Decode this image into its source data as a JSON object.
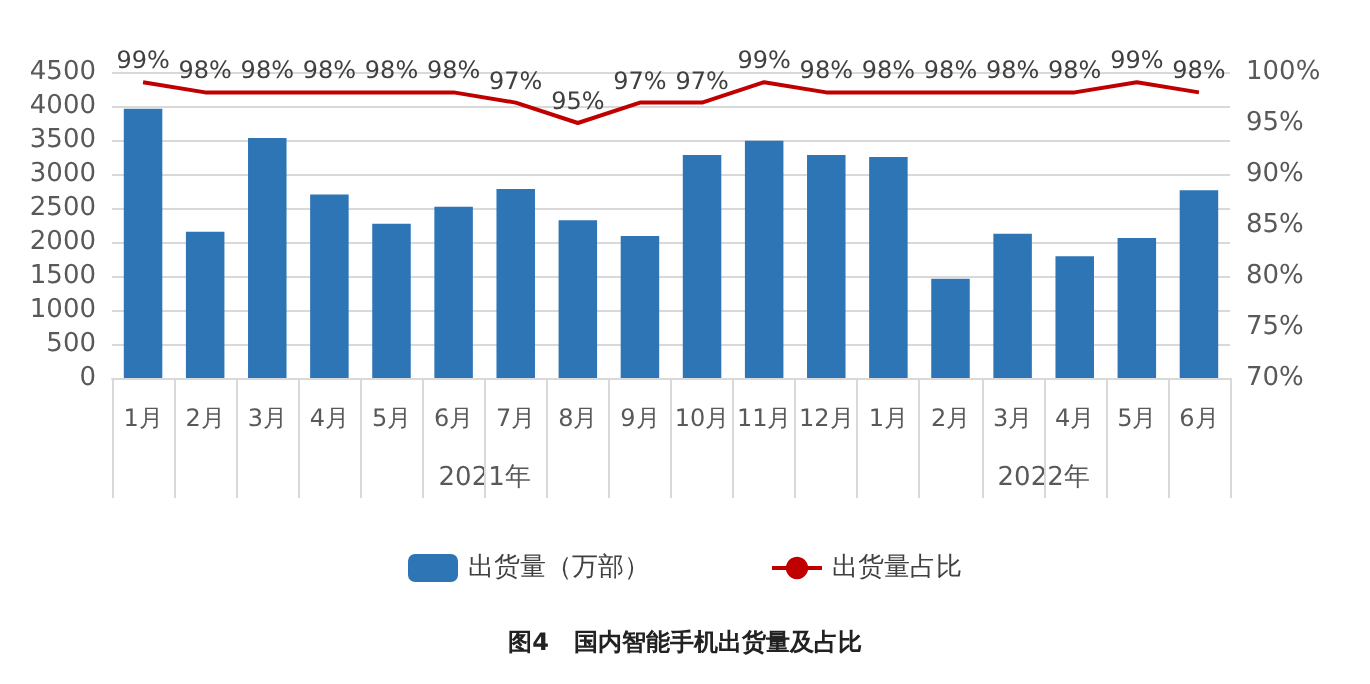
{
  "chart_data": {
    "type": "bar",
    "title": "图4   国内智能手机出货量及占比",
    "categories": [
      "1月",
      "2月",
      "3月",
      "4月",
      "5月",
      "6月",
      "7月",
      "8月",
      "9月",
      "10月",
      "11月",
      "12月",
      "1月",
      "2月",
      "3月",
      "4月",
      "5月",
      "6月"
    ],
    "series": [
      {
        "name": "出货量（万部）",
        "color": "#2e75b6",
        "values": [
          3960,
          2150,
          3530,
          2700,
          2270,
          2520,
          2780,
          2320,
          2090,
          3280,
          3490,
          3280,
          3250,
          1460,
          2120,
          1790,
          2060,
          2760
        ]
      },
      {
        "name": "出货量占比",
        "type": "line",
        "axis": "y2",
        "color": "#c00000",
        "values": [
          99,
          98,
          98,
          98,
          98,
          98,
          97,
          95,
          97,
          97,
          99,
          98,
          98,
          98,
          98,
          98,
          99,
          98
        ],
        "value_labels": [
          "99%",
          "98%",
          "98%",
          "98%",
          "98%",
          "98%",
          "97%",
          "95%",
          "97%",
          "97%",
          "99%",
          "98%",
          "98%",
          "98%",
          "98%",
          "98%",
          "99%",
          "98%"
        ]
      }
    ],
    "annotations": [
      "2021年",
      "2022年"
    ],
    "ylim": [
      0,
      4500
    ],
    "yticks": [
      0,
      500,
      1000,
      1500,
      2000,
      2500,
      3000,
      3500,
      4000,
      4500
    ],
    "y2lim": [
      70,
      100
    ],
    "y2ticks": [
      {
        "value": 70,
        "label": "70%"
      },
      {
        "value": 75,
        "label": "75%"
      },
      {
        "value": 80,
        "label": "80%"
      },
      {
        "value": 85,
        "label": "85%"
      },
      {
        "value": 90,
        "label": "90%"
      },
      {
        "value": 95,
        "label": "95%"
      },
      {
        "value": 100,
        "label": "100%"
      }
    ],
    "grid": "y",
    "legend": "bottom",
    "marker": "none",
    "line_style": "solid"
  }
}
